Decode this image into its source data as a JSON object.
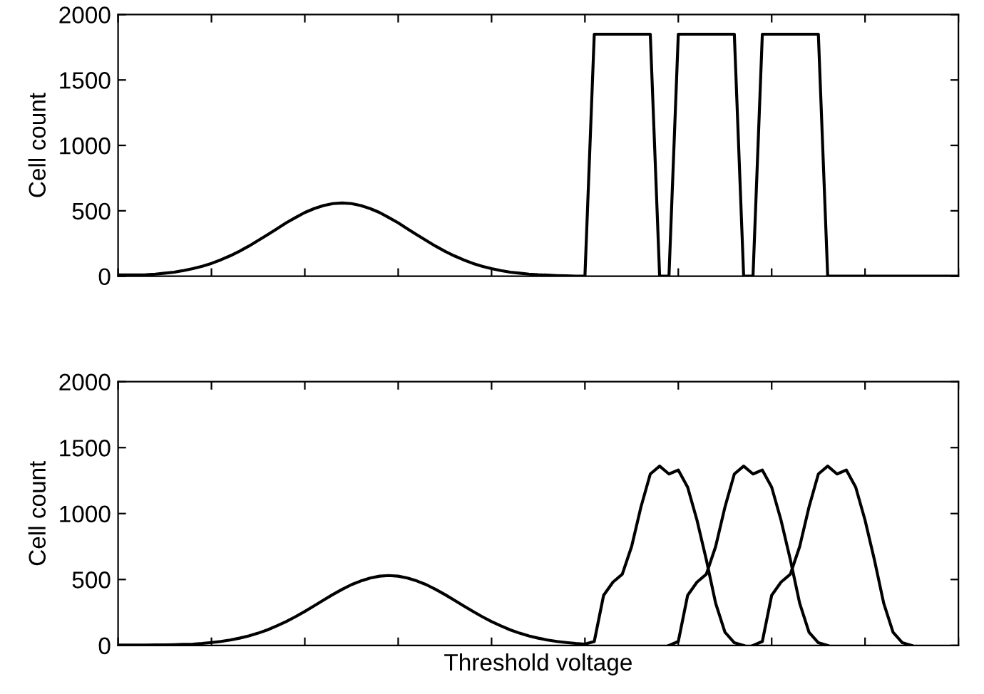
{
  "chart_data": [
    {
      "type": "line",
      "ylabel": "Cell count",
      "categories": [
        null,
        null,
        null,
        null,
        null,
        null,
        null,
        null,
        null,
        null,
        null,
        null,
        null,
        null,
        null,
        null,
        null,
        null,
        null,
        null,
        null,
        null,
        null,
        null,
        null,
        null,
        null,
        null,
        null,
        null,
        null,
        null,
        null,
        null,
        null,
        null,
        null,
        null,
        null,
        null,
        null,
        null,
        null,
        null,
        null,
        null,
        null,
        null,
        null,
        null,
        null,
        null,
        null,
        null,
        null,
        null,
        null,
        null,
        null,
        null,
        null,
        null,
        null,
        null,
        null,
        null,
        null,
        null,
        null,
        null,
        null,
        null,
        null,
        null,
        null,
        null,
        null,
        null,
        null,
        null,
        null,
        null,
        null,
        null,
        null,
        null,
        null,
        null,
        null,
        null,
        null
      ],
      "ylim": [
        0,
        2000
      ],
      "yticks": [
        0,
        500,
        1000,
        1500,
        2000
      ],
      "tick_labels": "y",
      "grid": false,
      "legend": false,
      "line_style": "solid",
      "marker": "none",
      "series": [
        {
          "color": "#000000",
          "values": [
            10,
            10,
            10,
            11,
            16,
            23,
            31,
            43,
            58,
            76,
            98,
            125,
            156,
            191,
            230,
            273,
            317,
            362,
            408,
            448,
            487,
            517,
            540,
            555,
            560,
            555,
            540,
            517,
            487,
            448,
            408,
            362,
            317,
            273,
            230,
            191,
            156,
            125,
            98,
            76,
            58,
            43,
            31,
            23,
            16,
            11,
            8,
            5,
            3,
            0,
            0,
            1850,
            1850,
            1850,
            1850,
            1850,
            1850,
            1850,
            0,
            0,
            1850,
            1850,
            1850,
            1850,
            1850,
            1850,
            1850,
            0,
            0,
            1850,
            1850,
            1850,
            1850,
            1850,
            1850,
            1850,
            0,
            0,
            0,
            0,
            0,
            0,
            0,
            0,
            0,
            0,
            0,
            0,
            0,
            0,
            0
          ]
        }
      ]
    },
    {
      "type": "line",
      "ylabel": "Cell count",
      "xlabel": "Threshold voltage",
      "categories": [
        null,
        null,
        null,
        null,
        null,
        null,
        null,
        null,
        null,
        null,
        null,
        null,
        null,
        null,
        null,
        null,
        null,
        null,
        null,
        null,
        null,
        null,
        null,
        null,
        null,
        null,
        null,
        null,
        null,
        null,
        null,
        null,
        null,
        null,
        null,
        null,
        null,
        null,
        null,
        null,
        null,
        null,
        null,
        null,
        null,
        null,
        null,
        null,
        null,
        null,
        null,
        null,
        null,
        null,
        null,
        null,
        null,
        null,
        null,
        null,
        null,
        null,
        null,
        null,
        null,
        null,
        null,
        null,
        null,
        null,
        null,
        null,
        null,
        null,
        null,
        null,
        null,
        null,
        null,
        null,
        null,
        null,
        null,
        null,
        null,
        null,
        null,
        null,
        null,
        null,
        null
      ],
      "ylim": [
        0,
        2000
      ],
      "yticks": [
        0,
        500,
        1000,
        1500,
        2000
      ],
      "tick_labels": "y",
      "grid": false,
      "legend": false,
      "line_style": "solid",
      "marker": "none",
      "series": [
        {
          "color": "#000000",
          "values": [
            2,
            2,
            3,
            3,
            4,
            4,
            6,
            8,
            10,
            15,
            22,
            30,
            41,
            55,
            72,
            93,
            118,
            148,
            181,
            218,
            258,
            300,
            343,
            386,
            425,
            461,
            489,
            511,
            525,
            530,
            525,
            511,
            489,
            461,
            425,
            386,
            343,
            300,
            258,
            218,
            181,
            148,
            118,
            93,
            72,
            55,
            41,
            30,
            22,
            15,
            10,
            30,
            380,
            480,
            540,
            750,
            1050,
            1300,
            1360,
            1300,
            1330,
            1200,
            950,
            650,
            320,
            100,
            20,
            0,
            null,
            null,
            null,
            null,
            null,
            null,
            null,
            null,
            null,
            null,
            null,
            null,
            null,
            null,
            null,
            null,
            null,
            null,
            null,
            null,
            null,
            null,
            null
          ]
        },
        {
          "color": "#000000",
          "values": [
            null,
            null,
            null,
            null,
            null,
            null,
            null,
            null,
            null,
            null,
            null,
            null,
            null,
            null,
            null,
            null,
            null,
            null,
            null,
            null,
            null,
            null,
            null,
            null,
            null,
            null,
            null,
            null,
            null,
            null,
            null,
            null,
            null,
            null,
            null,
            null,
            null,
            null,
            null,
            null,
            null,
            null,
            null,
            null,
            null,
            null,
            null,
            null,
            null,
            null,
            null,
            null,
            null,
            null,
            null,
            null,
            null,
            null,
            null,
            0,
            30,
            380,
            480,
            540,
            750,
            1050,
            1300,
            1360,
            1300,
            1330,
            1200,
            950,
            650,
            320,
            100,
            20,
            0,
            null,
            null,
            null,
            null,
            null,
            null,
            null,
            null,
            null,
            null,
            null,
            null,
            null,
            null
          ]
        },
        {
          "color": "#000000",
          "values": [
            null,
            null,
            null,
            null,
            null,
            null,
            null,
            null,
            null,
            null,
            null,
            null,
            null,
            null,
            null,
            null,
            null,
            null,
            null,
            null,
            null,
            null,
            null,
            null,
            null,
            null,
            null,
            null,
            null,
            null,
            null,
            null,
            null,
            null,
            null,
            null,
            null,
            null,
            null,
            null,
            null,
            null,
            null,
            null,
            null,
            null,
            null,
            null,
            null,
            null,
            null,
            null,
            null,
            null,
            null,
            null,
            null,
            null,
            null,
            null,
            null,
            null,
            null,
            null,
            null,
            null,
            null,
            null,
            0,
            30,
            380,
            480,
            540,
            750,
            1050,
            1300,
            1360,
            1300,
            1330,
            1200,
            950,
            650,
            320,
            100,
            20,
            0,
            null,
            null,
            null,
            null,
            null
          ]
        }
      ]
    }
  ]
}
